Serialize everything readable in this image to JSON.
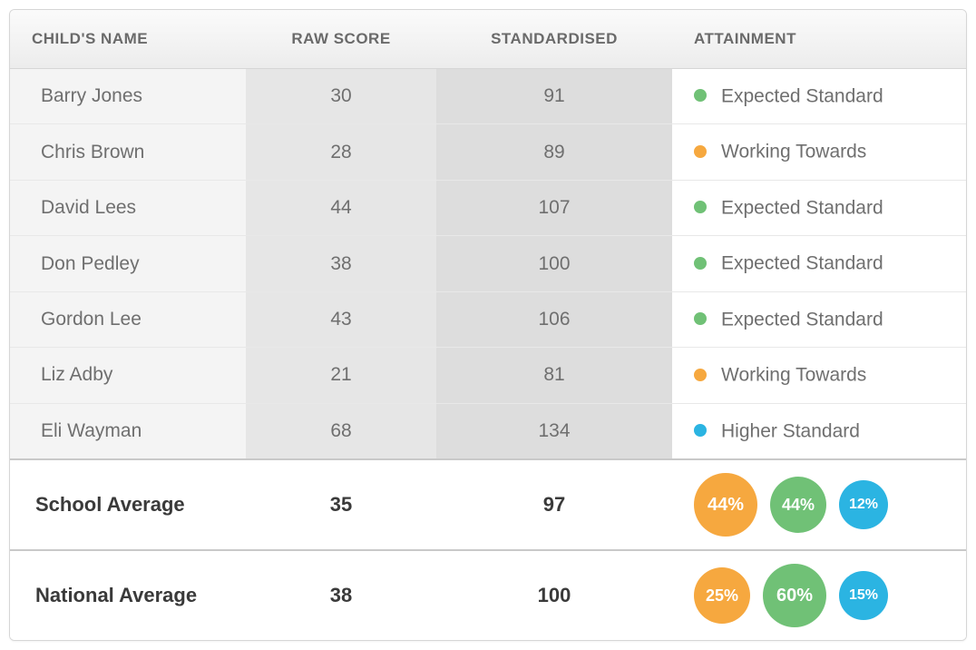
{
  "colors": {
    "green": "#70c176",
    "orange": "#f6a83f",
    "blue": "#2bb4e2",
    "text_muted": "#6f6f6f",
    "text_bold": "#3a3a3a"
  },
  "columns": {
    "name": "CHILD'S NAME",
    "raw": "RAW SCORE",
    "std": "STANDARDISED",
    "att": "ATTAINMENT"
  },
  "attainment_levels": {
    "expected": {
      "label": "Expected Standard",
      "color": "#70c176"
    },
    "working": {
      "label": "Working Towards",
      "color": "#f6a83f"
    },
    "higher": {
      "label": "Higher Standard",
      "color": "#2bb4e2"
    }
  },
  "rows": [
    {
      "name": "Barry Jones",
      "raw": "30",
      "std": "91",
      "att_key": "expected"
    },
    {
      "name": "Chris Brown",
      "raw": "28",
      "std": "89",
      "att_key": "working"
    },
    {
      "name": "David Lees",
      "raw": "44",
      "std": "107",
      "att_key": "expected"
    },
    {
      "name": "Don Pedley",
      "raw": "38",
      "std": "100",
      "att_key": "expected"
    },
    {
      "name": "Gordon Lee",
      "raw": "43",
      "std": "106",
      "att_key": "expected"
    },
    {
      "name": "Liz Adby",
      "raw": "21",
      "std": "81",
      "att_key": "working"
    },
    {
      "name": "Eli Wayman",
      "raw": "68",
      "std": "134",
      "att_key": "higher"
    }
  ],
  "summaries": [
    {
      "label": "School Average",
      "raw": "35",
      "std": "97",
      "circles": [
        {
          "value": "44%",
          "color": "#f6a83f",
          "size": "lg"
        },
        {
          "value": "44%",
          "color": "#70c176",
          "size": "md"
        },
        {
          "value": "12%",
          "color": "#2bb4e2",
          "size": "sm"
        }
      ]
    },
    {
      "label": "National Average",
      "raw": "38",
      "std": "100",
      "circles": [
        {
          "value": "25%",
          "color": "#f6a83f",
          "size": "md"
        },
        {
          "value": "60%",
          "color": "#70c176",
          "size": "lg"
        },
        {
          "value": "15%",
          "color": "#2bb4e2",
          "size": "sm"
        }
      ]
    }
  ]
}
